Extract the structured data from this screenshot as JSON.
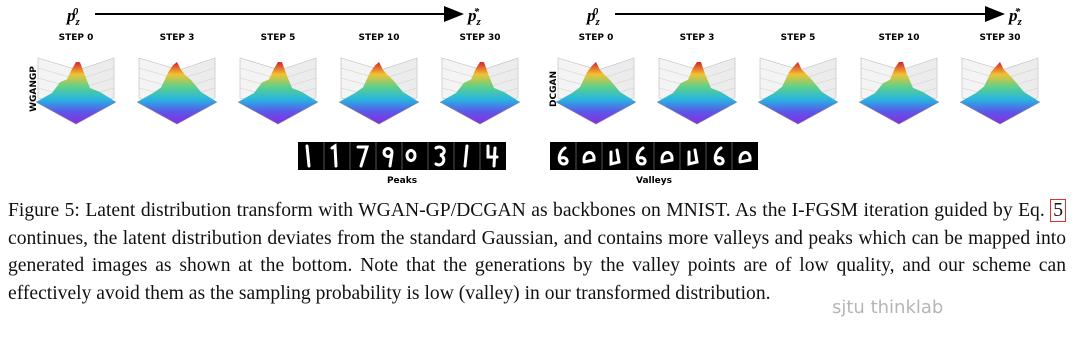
{
  "figure": {
    "panels": [
      {
        "start": {
          "base": "p",
          "sub": "z",
          "sup": "0"
        },
        "end": {
          "base": "p",
          "sub": "z",
          "sup": "*"
        },
        "steps": [
          "STEP 0",
          "STEP 3",
          "STEP 5",
          "STEP 10",
          "STEP 30"
        ],
        "row_label": "WGANGP",
        "strip_label": "Peaks"
      },
      {
        "start": {
          "base": "p",
          "sub": "z",
          "sup": "0"
        },
        "end": {
          "base": "p",
          "sub": "z",
          "sup": "*"
        },
        "steps": [
          "STEP 0",
          "STEP 3",
          "STEP 5",
          "STEP 10",
          "STEP 30"
        ],
        "row_label": "DCGAN",
        "strip_label": "Valleys"
      }
    ]
  },
  "caption": {
    "label": "Figure 5:",
    "text_before": " Latent distribution transform with WGAN-GP/DCGAN as backbones on MNIST. As the I-FGSM iteration guided by Eq.",
    "ref": "5",
    "text_after": " continues, the latent distribution deviates from the standard Gaussian, and contains more valleys and peaks which can be mapped into generated images as shown at the bottom. Note that the generations by the valley points are of low quality, and our scheme can effectively avoid them as the sampling probability is low (valley) in our transformed distribution."
  },
  "watermark": "sjtu thinklab"
}
